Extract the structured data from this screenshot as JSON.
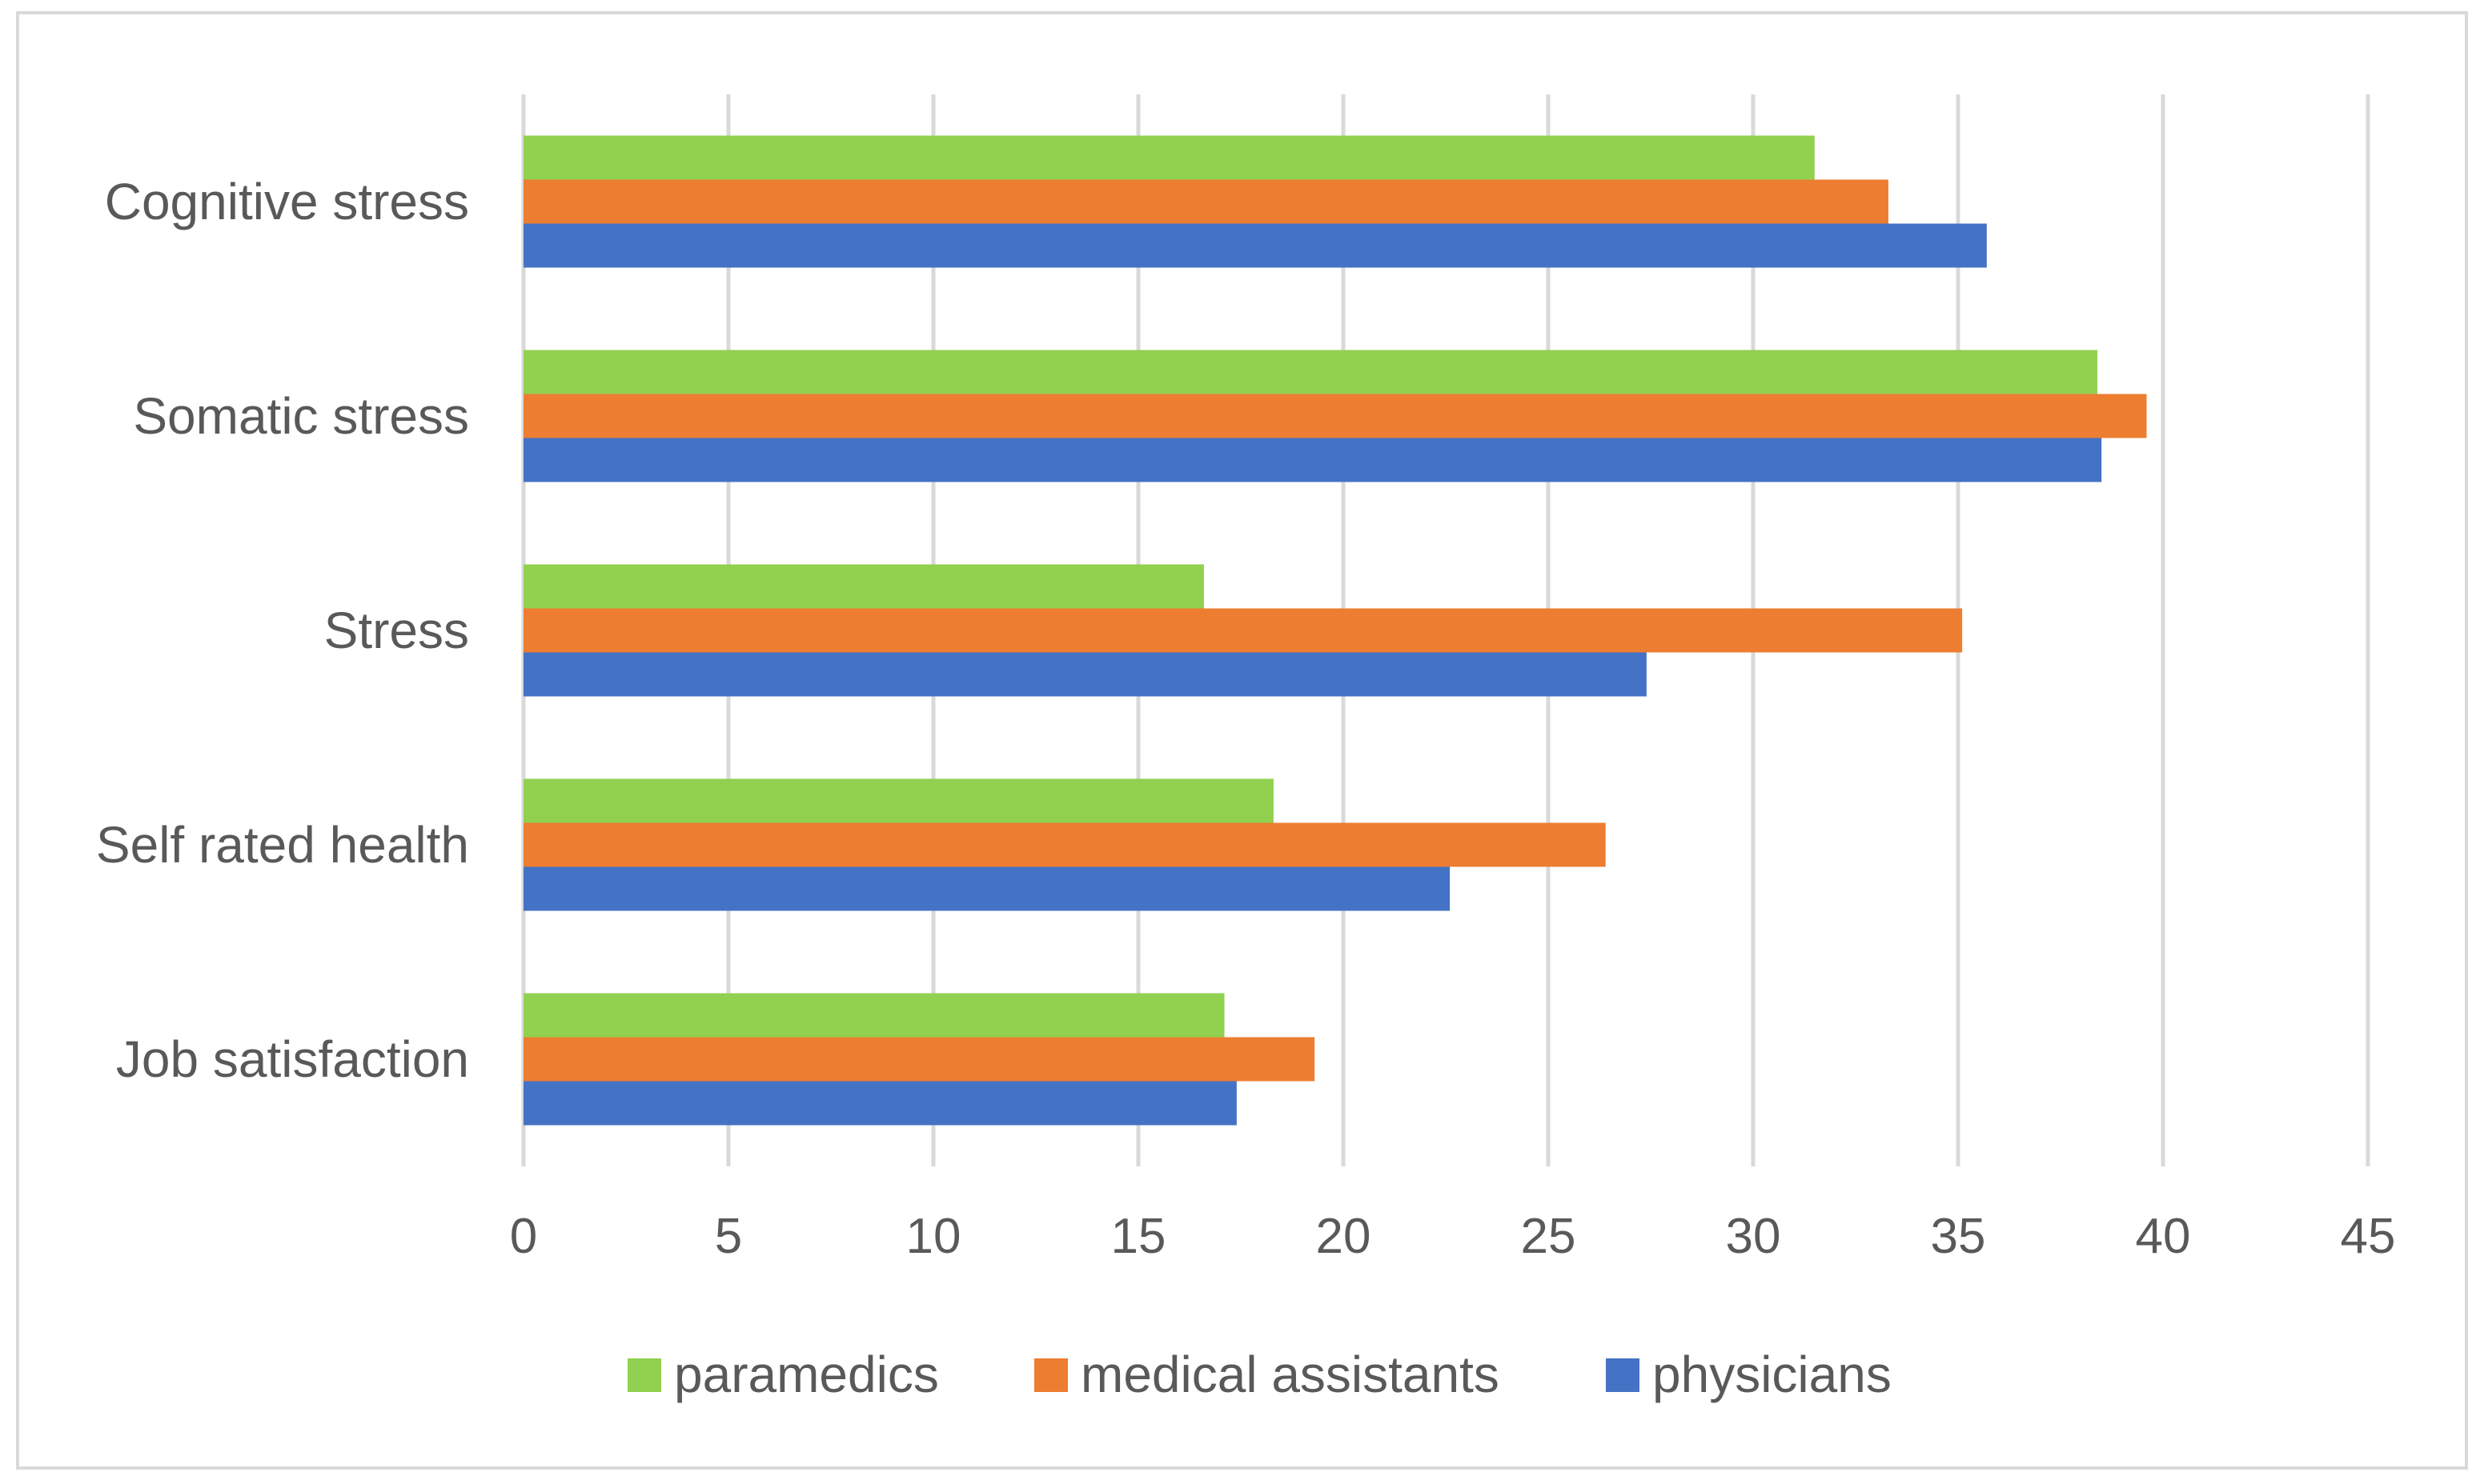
{
  "chart_data": {
    "type": "bar",
    "orientation": "horizontal",
    "title": "",
    "xlabel": "",
    "ylabel": "",
    "xlim": [
      0,
      45
    ],
    "x_ticks": [
      0,
      5,
      10,
      15,
      20,
      25,
      30,
      35,
      40,
      45
    ],
    "grid": true,
    "legend_position": "bottom",
    "categories": [
      "Cognitive stress",
      "Somatic stress",
      "Stress",
      "Self rated health",
      "Job satisfaction"
    ],
    "series": [
      {
        "name": "paramedics",
        "color": "#92d050",
        "values": [
          31.5,
          38.4,
          16.6,
          18.3,
          17.1
        ]
      },
      {
        "name": "medical assistants",
        "color": "#ed7d31",
        "values": [
          33.3,
          39.6,
          35.1,
          26.4,
          19.3
        ]
      },
      {
        "name": "physicians",
        "color": "#4472c4",
        "values": [
          35.7,
          38.5,
          27.4,
          22.6,
          17.4
        ]
      }
    ]
  }
}
